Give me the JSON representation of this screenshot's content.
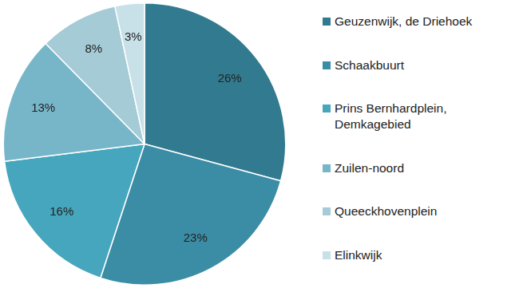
{
  "chart_data": {
    "type": "pie",
    "categories": [
      "Geuzenwijk, de Driehoek",
      "Schaakbuurt",
      "Prins Bernhardplein, Demkagebied",
      "Zuilen-noord",
      "Queeckhovenplein",
      "Elinkwijk"
    ],
    "values": [
      26,
      23,
      16,
      13,
      8,
      3
    ],
    "value_labels": [
      "26%",
      "23%",
      "16%",
      "13%",
      "8%",
      "3%"
    ],
    "colors": [
      "#327a8f",
      "#3b8da6",
      "#46a6bd",
      "#77b6c8",
      "#a5cbd7",
      "#c8e0e8"
    ],
    "data_labels": true,
    "legend": "right"
  }
}
